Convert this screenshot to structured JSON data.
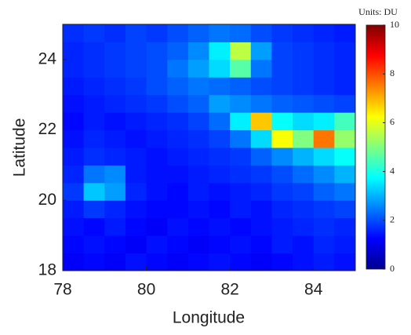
{
  "chart_data": {
    "type": "heatmap",
    "xlabel": "Longitude",
    "ylabel": "Latitude",
    "xlim": [
      78,
      85
    ],
    "ylim": [
      18,
      25
    ],
    "xticks": [
      78,
      80,
      82,
      84
    ],
    "yticks": [
      18,
      20,
      22,
      24
    ],
    "x": [
      78.25,
      78.75,
      79.25,
      79.75,
      80.25,
      80.75,
      81.25,
      81.75,
      82.25,
      82.75,
      83.25,
      83.75,
      84.25,
      84.75
    ],
    "y": [
      18.25,
      18.75,
      19.25,
      19.75,
      20.25,
      20.75,
      21.25,
      21.75,
      22.25,
      22.75,
      23.25,
      23.75,
      24.25,
      24.75
    ],
    "values": [
      [
        1.2,
        1.3,
        1.2,
        1.4,
        1.3,
        1.2,
        1.3,
        1.4,
        1.3,
        1.2,
        1.3,
        1.4,
        1.5,
        1.4
      ],
      [
        1.3,
        1.4,
        1.3,
        1.2,
        1.4,
        1.3,
        1.2,
        1.3,
        1.4,
        1.3,
        1.5,
        1.4,
        1.6,
        1.5
      ],
      [
        1.4,
        1.3,
        1.5,
        1.3,
        1.2,
        1.4,
        1.3,
        1.4,
        1.3,
        1.4,
        1.5,
        1.6,
        1.7,
        1.6
      ],
      [
        1.5,
        1.8,
        1.6,
        1.4,
        1.3,
        1.3,
        1.4,
        1.3,
        1.5,
        1.4,
        1.6,
        1.7,
        1.8,
        1.9
      ],
      [
        1.8,
        3.2,
        2.8,
        1.6,
        1.4,
        1.3,
        1.5,
        1.4,
        1.5,
        1.6,
        1.8,
        1.9,
        2.2,
        2.4
      ],
      [
        1.6,
        2.4,
        2.6,
        1.5,
        1.4,
        1.4,
        1.5,
        1.6,
        1.7,
        1.8,
        2.0,
        2.3,
        2.6,
        3.0
      ],
      [
        1.5,
        1.7,
        1.6,
        1.5,
        1.4,
        1.5,
        1.6,
        1.7,
        1.8,
        2.2,
        2.6,
        3.0,
        3.4,
        3.8
      ],
      [
        1.4,
        1.6,
        1.5,
        1.4,
        1.5,
        1.6,
        1.7,
        1.9,
        2.4,
        3.4,
        6.2,
        5.0,
        7.6,
        5.2
      ],
      [
        1.3,
        1.5,
        1.4,
        1.5,
        1.6,
        1.7,
        1.9,
        2.3,
        3.6,
        6.8,
        3.8,
        3.4,
        3.6,
        4.4
      ],
      [
        1.4,
        1.5,
        1.6,
        1.7,
        1.8,
        2.0,
        2.2,
        2.8,
        2.6,
        2.4,
        2.2,
        2.1,
        2.0,
        1.9
      ],
      [
        1.5,
        1.6,
        1.7,
        1.8,
        2.0,
        2.2,
        2.4,
        2.3,
        2.2,
        2.0,
        1.9,
        1.8,
        1.7,
        1.6
      ],
      [
        1.6,
        1.7,
        1.8,
        1.9,
        2.0,
        2.4,
        2.8,
        3.4,
        4.6,
        2.4,
        1.9,
        1.8,
        1.7,
        1.6
      ],
      [
        1.6,
        1.7,
        1.8,
        1.9,
        2.0,
        2.2,
        2.6,
        3.6,
        5.6,
        2.8,
        1.9,
        1.8,
        1.7,
        1.6
      ],
      [
        1.7,
        1.8,
        1.7,
        1.9,
        1.8,
        2.0,
        2.2,
        2.4,
        2.3,
        2.0,
        1.8,
        1.7,
        1.6,
        1.5
      ]
    ],
    "colormap": "jet",
    "zlim": [
      0,
      10
    ],
    "zticks": [
      0,
      2,
      4,
      6,
      8,
      10
    ],
    "colorbar_label": "Units: DU"
  }
}
